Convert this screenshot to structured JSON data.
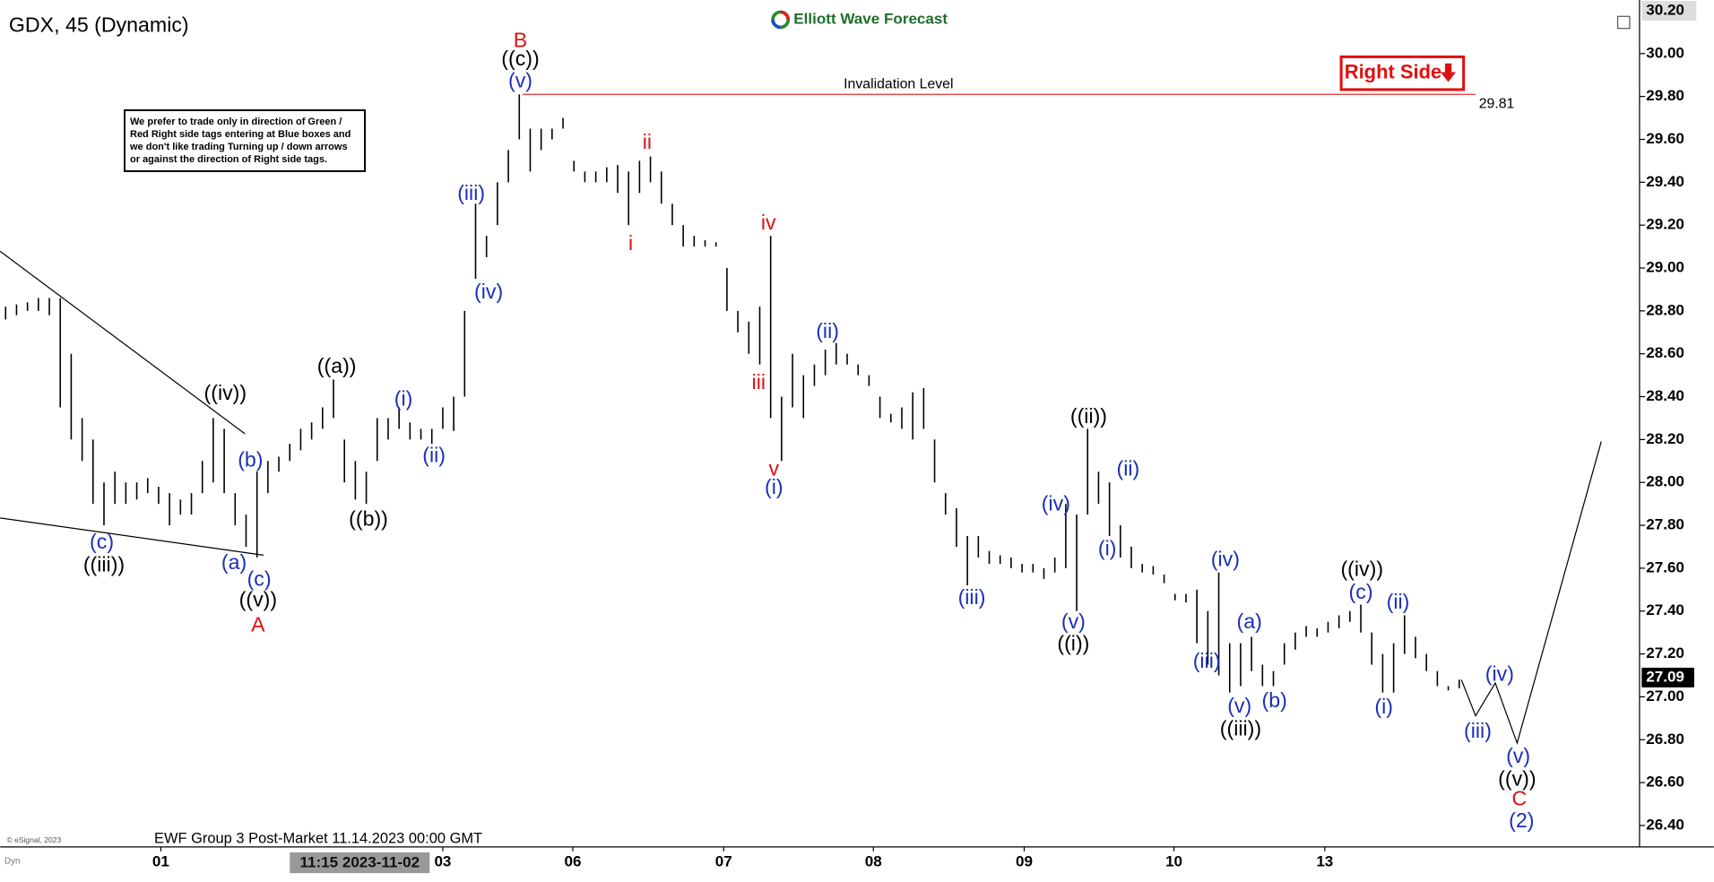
{
  "chart_data": {
    "type": "ohlc",
    "title": "GDX, 45 (Dynamic)",
    "brand": "Elliott Wave Forecast",
    "footer": "EWF Group 3 Post-Market 11.14.2023 00:00 GMT",
    "copyright": "© eSignal, 2023",
    "corner_label": "Dyn",
    "note": "We prefer to trade only in direction of Green / Red Right side tags entering at Blue boxes and we don't like trading Turning up / down arrows or against the direction of Right side tags.",
    "tag": "Right Side",
    "crosshair_label": "11:15 2023-11-02",
    "color": "#000000",
    "high": [
      28.82,
      28.83,
      28.84,
      28.86,
      28.86,
      28.86,
      28.6,
      28.3,
      28.2,
      28.0,
      28.05,
      28.0,
      28.0,
      28.02,
      27.98,
      27.95,
      27.92,
      27.95,
      28.1,
      28.3,
      28.25,
      27.95,
      27.85,
      28.05,
      28.1,
      28.12,
      28.18,
      28.25,
      28.28,
      28.35,
      28.48,
      28.2,
      28.1,
      28.05,
      28.3,
      28.3,
      28.35,
      28.28,
      28.25,
      28.25,
      28.35,
      28.4,
      28.8,
      29.3,
      29.15,
      29.4,
      29.55,
      29.81,
      29.65,
      29.65,
      29.65,
      29.7,
      29.5,
      29.45,
      29.45,
      29.47,
      29.48,
      29.45,
      29.5,
      29.52,
      29.45,
      29.3,
      29.2,
      29.15,
      29.13,
      29.12,
      29.0,
      28.8,
      28.75,
      28.82,
      29.15,
      28.4,
      28.6,
      28.5,
      28.55,
      28.62,
      28.65,
      28.6,
      28.55,
      28.5,
      28.4,
      28.32,
      28.35,
      28.42,
      28.44,
      28.2,
      27.95,
      27.88,
      27.75,
      27.75,
      27.68,
      27.66,
      27.65,
      27.62,
      27.62,
      27.6,
      27.65,
      27.9,
      27.85,
      28.25,
      28.05,
      28.0,
      27.8,
      27.7,
      27.62,
      27.61,
      27.57,
      27.48,
      27.48,
      27.5,
      27.4,
      27.58,
      27.25,
      27.25,
      27.28,
      27.15,
      27.12,
      27.25,
      27.3,
      27.33,
      27.32,
      27.35,
      27.38,
      27.4,
      27.43,
      27.3,
      27.2,
      27.25,
      27.38,
      27.28,
      27.2,
      27.12,
      27.05,
      27.08
    ],
    "low": [
      28.76,
      28.78,
      28.8,
      28.8,
      28.78,
      28.35,
      28.2,
      28.1,
      27.9,
      27.8,
      27.9,
      27.9,
      27.92,
      27.95,
      27.9,
      27.8,
      27.85,
      27.85,
      27.95,
      28.0,
      27.95,
      27.8,
      27.7,
      27.65,
      27.95,
      28.05,
      28.1,
      28.15,
      28.2,
      28.25,
      28.3,
      28.0,
      27.92,
      27.9,
      28.1,
      28.2,
      28.25,
      28.2,
      28.2,
      28.18,
      28.25,
      28.24,
      28.4,
      28.95,
      29.05,
      29.2,
      29.4,
      29.6,
      29.45,
      29.55,
      29.6,
      29.65,
      29.45,
      29.4,
      29.4,
      29.4,
      29.35,
      29.2,
      29.35,
      29.4,
      29.3,
      29.2,
      29.1,
      29.1,
      29.1,
      29.1,
      28.8,
      28.7,
      28.6,
      28.55,
      28.3,
      28.1,
      28.35,
      28.3,
      28.45,
      28.5,
      28.55,
      28.55,
      28.5,
      28.45,
      28.3,
      28.28,
      28.25,
      28.2,
      28.25,
      28.0,
      27.85,
      27.7,
      27.52,
      27.65,
      27.62,
      27.62,
      27.6,
      27.58,
      27.58,
      27.55,
      27.58,
      27.6,
      27.4,
      27.85,
      27.9,
      27.75,
      27.65,
      27.6,
      27.58,
      27.57,
      27.53,
      27.45,
      27.44,
      27.25,
      27.15,
      27.1,
      27.02,
      27.05,
      27.12,
      27.05,
      27.05,
      27.15,
      27.22,
      27.28,
      27.28,
      27.3,
      27.32,
      27.35,
      27.3,
      27.15,
      27.02,
      27.02,
      27.2,
      27.18,
      27.12,
      27.05,
      27.03,
      27.04
    ],
    "xlim": [
      -0.5,
      149.5
    ],
    "xticks": [
      {
        "value": 14.2,
        "label": "01"
      },
      {
        "value": 40,
        "label": "03"
      },
      {
        "value": 51.9,
        "label": "06"
      },
      {
        "value": 65.7,
        "label": "07"
      },
      {
        "value": 79.4,
        "label": "08"
      },
      {
        "value": 93.2,
        "label": "09"
      },
      {
        "value": 106.9,
        "label": "10"
      },
      {
        "value": 120.7,
        "label": "13"
      }
    ],
    "ylim": [
      26.3,
      30.25
    ],
    "yticks": [
      {
        "value": 26.4,
        "label": "26.40"
      },
      {
        "value": 26.6,
        "label": "26.60"
      },
      {
        "value": 26.8,
        "label": "26.80"
      },
      {
        "value": 27,
        "label": "27.00"
      },
      {
        "value": 27.2,
        "label": "27.20"
      },
      {
        "value": 27.4,
        "label": "27.40"
      },
      {
        "value": 27.6,
        "label": "27.60"
      },
      {
        "value": 27.8,
        "label": "27.80"
      },
      {
        "value": 28,
        "label": "28.00"
      },
      {
        "value": 28.2,
        "label": "28.20"
      },
      {
        "value": 28.4,
        "label": "28.40"
      },
      {
        "value": 28.6,
        "label": "28.60"
      },
      {
        "value": 28.8,
        "label": "28.80"
      },
      {
        "value": 29,
        "label": "29.00"
      },
      {
        "value": 29.2,
        "label": "29.20"
      },
      {
        "value": 29.4,
        "label": "29.40"
      },
      {
        "value": 29.6,
        "label": "29.60"
      },
      {
        "value": 29.8,
        "label": "29.80"
      },
      {
        "value": 30,
        "label": "30.00"
      }
    ],
    "top_price": {
      "value": 30.2,
      "label": "30.20"
    },
    "last_price": 27.09,
    "invalidation": {
      "label": "Invalidation Level",
      "value": 29.81,
      "color": "#e03030"
    },
    "annotations": [
      {
        "text": "((iii))",
        "color": "#000000"
      },
      {
        "text": "((iv))",
        "color": "#000000"
      },
      {
        "text": "((v))",
        "color": "#000000"
      },
      {
        "text": "((a))",
        "color": "#000000"
      },
      {
        "text": "((b))",
        "color": "#000000"
      },
      {
        "text": "((c))",
        "color": "#000000"
      },
      {
        "text": "((ii))",
        "color": "#000000"
      },
      {
        "text": "((i))",
        "color": "#000000"
      },
      {
        "text": "((iii))",
        "color": "#000000"
      },
      {
        "text": "((iv))",
        "color": "#000000"
      },
      {
        "text": "((v))",
        "color": "#000000"
      },
      {
        "text": "(c)",
        "color": "#1a2fb8"
      },
      {
        "text": "(a)",
        "color": "#1a2fb8"
      },
      {
        "text": "(b)",
        "color": "#1a2fb8"
      },
      {
        "text": "(c)",
        "color": "#1a2fb8"
      },
      {
        "text": "(i)",
        "color": "#1a2fb8"
      },
      {
        "text": "(ii)",
        "color": "#1a2fb8"
      },
      {
        "text": "(iii)",
        "color": "#1a2fb8"
      },
      {
        "text": "(iv)",
        "color": "#1a2fb8"
      },
      {
        "text": "(v)",
        "color": "#1a2fb8"
      },
      {
        "text": "(i)",
        "color": "#1a2fb8"
      },
      {
        "text": "(ii)",
        "color": "#1a2fb8"
      },
      {
        "text": "(iii)",
        "color": "#1a2fb8"
      },
      {
        "text": "(iv)",
        "color": "#1a2fb8"
      },
      {
        "text": "(v)",
        "color": "#1a2fb8"
      },
      {
        "text": "(ii)",
        "color": "#1a2fb8"
      },
      {
        "text": "(i)",
        "color": "#1a2fb8"
      },
      {
        "text": "(iv)",
        "color": "#1a2fb8"
      },
      {
        "text": "(iii)",
        "color": "#1a2fb8"
      },
      {
        "text": "(v)",
        "color": "#1a2fb8"
      },
      {
        "text": "(a)",
        "color": "#1a2fb8"
      },
      {
        "text": "(b)",
        "color": "#1a2fb8"
      },
      {
        "text": "(c)",
        "color": "#1a2fb8"
      },
      {
        "text": "(ii)",
        "color": "#1a2fb8"
      },
      {
        "text": "(i)",
        "color": "#1a2fb8"
      },
      {
        "text": "(iii)",
        "color": "#1a2fb8"
      },
      {
        "text": "(iv)",
        "color": "#1a2fb8"
      },
      {
        "text": "(v)",
        "color": "#1a2fb8"
      },
      {
        "text": "(2)",
        "color": "#1a2fb8"
      },
      {
        "text": "A",
        "color": "#e01010"
      },
      {
        "text": "B",
        "color": "#e01010"
      },
      {
        "text": "ii",
        "color": "#e01010"
      },
      {
        "text": "i",
        "color": "#e01010"
      },
      {
        "text": "iv",
        "color": "#e01010"
      },
      {
        "text": "iii",
        "color": "#e01010"
      },
      {
        "text": "v",
        "color": "#e01010"
      },
      {
        "text": "C",
        "color": "#e01010"
      }
    ]
  }
}
